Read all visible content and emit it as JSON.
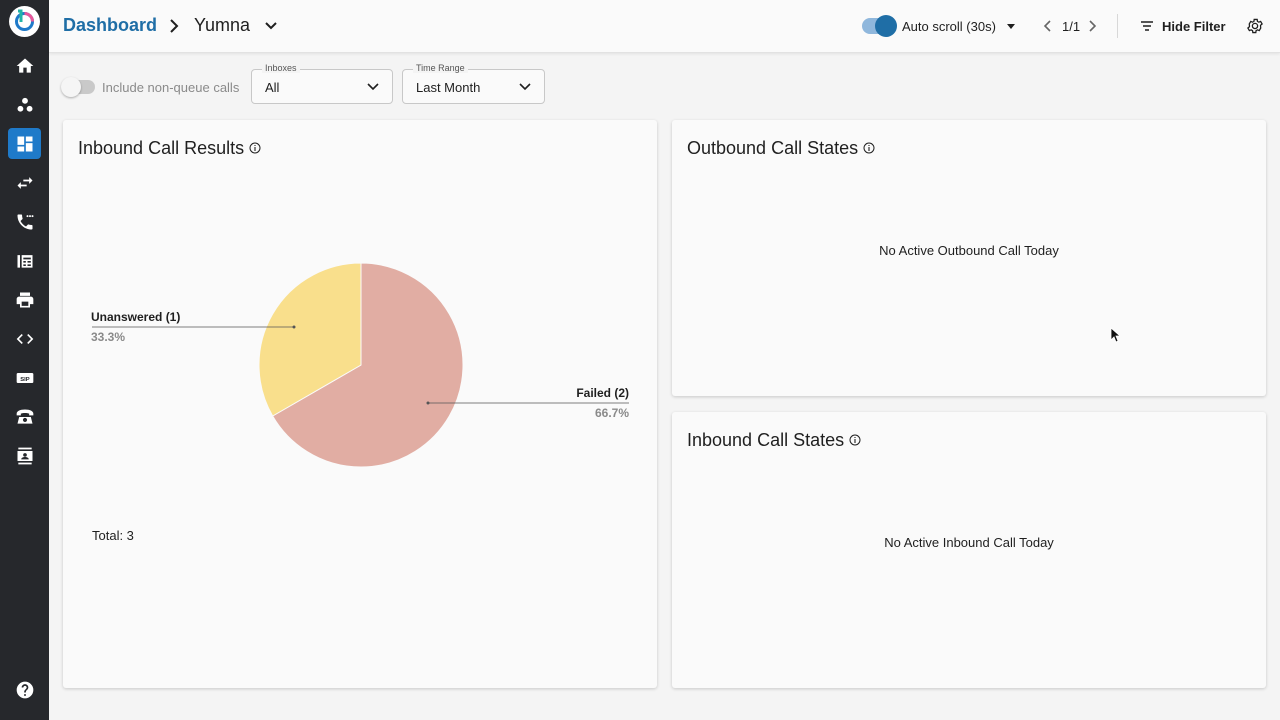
{
  "header": {
    "breadcrumb_root": "Dashboard",
    "breadcrumb_current": "Yumna",
    "auto_scroll_label": "Auto scroll (30s)",
    "auto_scroll_enabled": true,
    "page_count": "1/1",
    "hide_filter_label": "Hide Filter"
  },
  "filters": {
    "non_queue_label": "Include non-queue calls",
    "non_queue_enabled": false,
    "inboxes": {
      "label": "Inboxes",
      "value": "All"
    },
    "time_range": {
      "label": "Time Range",
      "value": "Last Month"
    }
  },
  "sidebar": {
    "items": [
      {
        "icon": "home-icon"
      },
      {
        "icon": "users-icon"
      },
      {
        "icon": "dashboard-icon",
        "active": true
      },
      {
        "icon": "transfer-icon"
      },
      {
        "icon": "phone-icon"
      },
      {
        "icon": "fax-icon"
      },
      {
        "icon": "printer-icon"
      },
      {
        "icon": "code-icon"
      },
      {
        "icon": "sip-icon"
      },
      {
        "icon": "telephone-icon"
      },
      {
        "icon": "contacts-icon"
      }
    ],
    "help_icon": "help-icon"
  },
  "cards": {
    "inbound_results": {
      "title": "Inbound Call Results",
      "total": "Total: 3",
      "slices": [
        {
          "name": "Unanswered (1)",
          "pct": "33.3%",
          "color": "#f9df8c"
        },
        {
          "name": "Failed (2)",
          "pct": "66.7%",
          "color": "#e1ada3"
        }
      ]
    },
    "outbound_states": {
      "title": "Outbound Call States",
      "empty": "No Active Outbound Call Today"
    },
    "inbound_states": {
      "title": "Inbound Call States",
      "empty": "No Active Inbound Call Today"
    }
  },
  "chart_data": {
    "type": "pie",
    "categories": [
      "Unanswered",
      "Failed"
    ],
    "values": [
      1,
      2
    ],
    "percentages": [
      33.3,
      66.7
    ],
    "title": "Inbound Call Results"
  }
}
